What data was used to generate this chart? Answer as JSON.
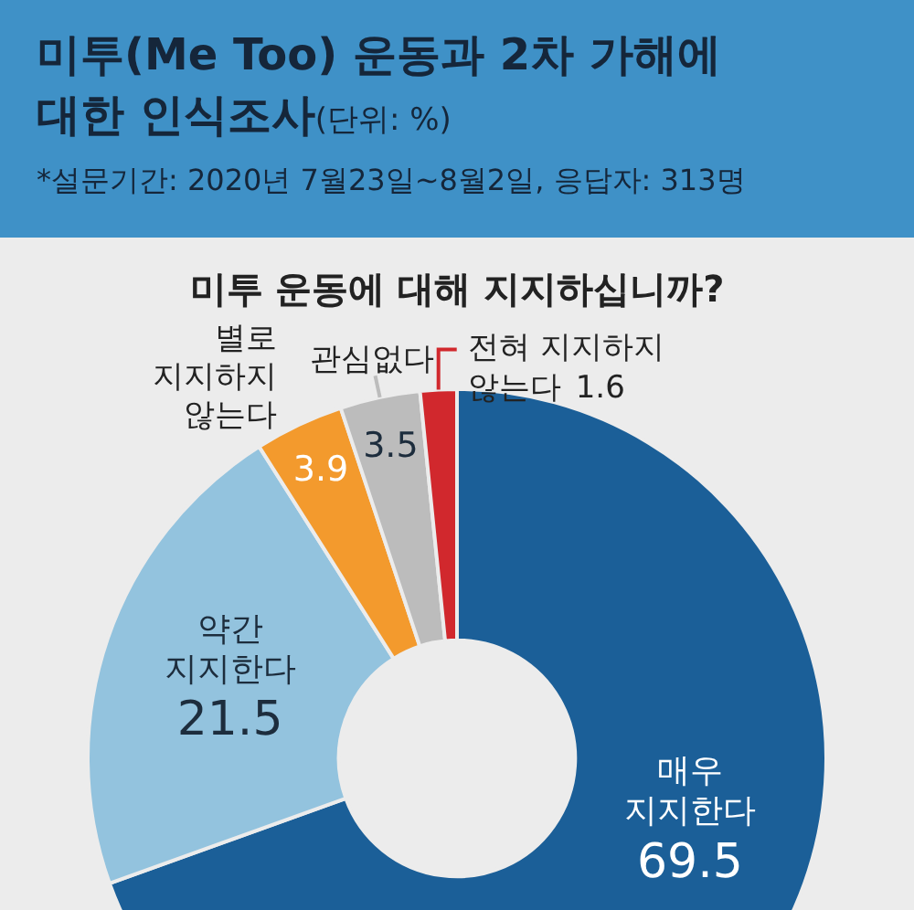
{
  "chart_data": {
    "type": "donut",
    "title": "미투(Me Too) 운동과 2차 가해에 대한 인식조사",
    "subtitle": "*설문기간: 2020년 7월23일~8월2일, 응답자: 313명",
    "annotations": [
      "(단위: %)",
      "미투 운동에 대해 지지하십니까?"
    ],
    "categories": [
      "매우 지지한다",
      "약간 지지한다",
      "별로 지지하지 않는다",
      "관심없다",
      "전혀 지지하지 않는다"
    ],
    "values": [
      69.5,
      21.5,
      3.9,
      3.5,
      1.6
    ],
    "colors": [
      "#1b5f98",
      "#93c3de",
      "#f39a2d",
      "#bcbcbc",
      "#d1282d"
    ],
    "data_labels": true,
    "legend": false
  }
}
